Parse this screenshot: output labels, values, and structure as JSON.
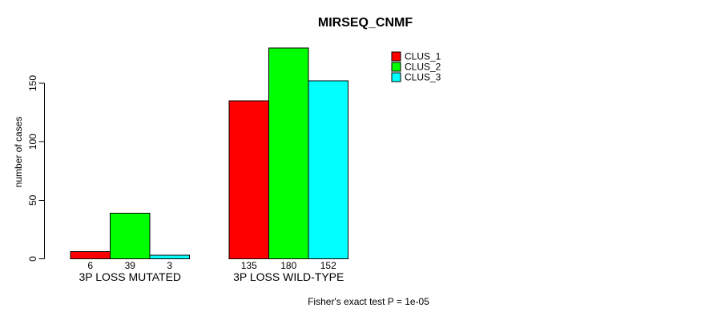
{
  "chart_data": {
    "type": "bar",
    "title": "MIRSEQ_CNMF",
    "ylabel": "number of cases",
    "xlabel": "",
    "categories": [
      "3P LOSS MUTATED",
      "3P LOSS WILD-TYPE"
    ],
    "series": [
      {
        "name": "CLUS_1",
        "color": "#FF0000",
        "values": [
          6,
          135
        ]
      },
      {
        "name": "CLUS_2",
        "color": "#00FF00",
        "values": [
          39,
          180
        ]
      },
      {
        "name": "CLUS_3",
        "color": "#00FFFF",
        "values": [
          3,
          152
        ]
      }
    ],
    "bar_value_labels": [
      [
        "6",
        "39",
        "3"
      ],
      [
        "135",
        "180",
        "152"
      ]
    ],
    "yticks": [
      0,
      50,
      100,
      150
    ],
    "ylim": [
      0,
      180
    ],
    "grid": false,
    "legend_position": "top-right",
    "legend_entries": [
      "CLUS_1",
      "CLUS_2",
      "CLUS_3"
    ],
    "footnote": "Fisher's exact test P = 1e-05",
    "colors": {
      "background": "#FFFFFF",
      "axis": "#000000",
      "bar_border": "#000000"
    }
  }
}
